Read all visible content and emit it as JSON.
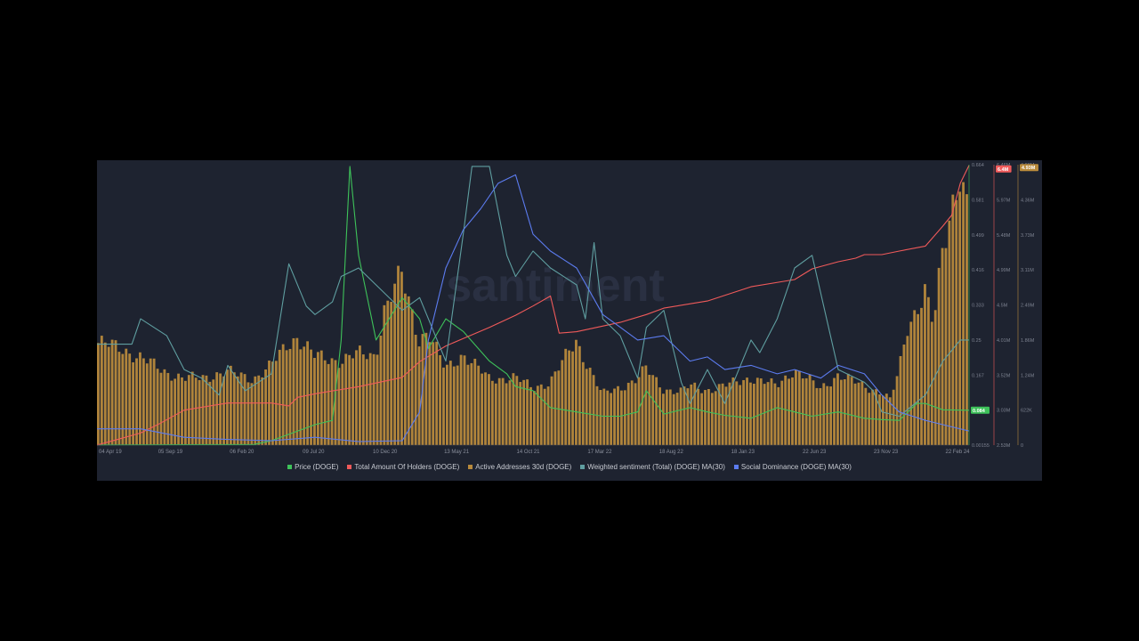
{
  "chart_data": {
    "type": "line",
    "title": "",
    "watermark": "santiment",
    "x_ticks": [
      "04 Apr 19",
      "05 Sep 19",
      "06 Feb 20",
      "09 Jul 20",
      "10 Dec 20",
      "13 May 21",
      "14 Oct 21",
      "17 Mar 22",
      "18 Aug 22",
      "18 Jan 23",
      "22 Jun 23",
      "23 Nov 23",
      "22 Feb 24"
    ],
    "grid": false,
    "legend_position": "bottom",
    "axes": {
      "price": {
        "ticks": [
          "0.00155",
          "0.084",
          "0.167",
          "0.25",
          "0.333",
          "0.416",
          "0.499",
          "0.581",
          "0.664"
        ],
        "badge": "0.084",
        "color": "#3ec25a"
      },
      "holders": {
        "ticks": [
          "2.53M",
          "3.03M",
          "3.52M",
          "4.01M",
          "4.5M",
          "4.99M",
          "5.48M",
          "5.97M",
          "6.46M"
        ],
        "badge": "6.4M",
        "color": "#f05a5a"
      },
      "active_addresses": {
        "ticks": [
          "0",
          "622K",
          "1.24M",
          "1.86M",
          "2.49M",
          "3.11M",
          "3.73M",
          "4.36M",
          "4.98M"
        ],
        "badge": "4.93M",
        "color": "#b88a3c"
      }
    },
    "series": [
      {
        "name": "Price (DOGE)",
        "color": "#3ec25a",
        "axis": "price",
        "x": [
          0,
          18,
          20,
          25,
          27,
          28,
          29,
          30,
          32,
          35,
          37,
          38,
          40,
          42,
          45,
          47,
          48,
          50,
          52,
          55,
          58,
          60,
          62,
          63,
          65,
          68,
          70,
          72,
          75,
          78,
          80,
          82,
          85,
          88,
          90,
          92,
          94,
          95,
          97,
          100
        ],
        "values": [
          0.002,
          0.003,
          0.012,
          0.05,
          0.06,
          0.25,
          0.66,
          0.45,
          0.25,
          0.35,
          0.3,
          0.23,
          0.3,
          0.27,
          0.2,
          0.17,
          0.14,
          0.13,
          0.09,
          0.08,
          0.07,
          0.07,
          0.08,
          0.13,
          0.075,
          0.09,
          0.08,
          0.072,
          0.065,
          0.09,
          0.08,
          0.07,
          0.08,
          0.065,
          0.062,
          0.06,
          0.1,
          0.1,
          0.085,
          0.084
        ]
      },
      {
        "name": "Total Amount Of Holders (DOGE)",
        "color": "#f05a5a",
        "axis": "holders",
        "x": [
          0,
          5,
          7,
          10,
          15,
          20,
          22,
          23,
          25,
          30,
          35,
          37,
          40,
          45,
          48,
          50,
          52,
          53,
          55,
          60,
          63,
          65,
          70,
          75,
          80,
          82,
          85,
          87,
          88,
          90,
          92,
          95,
          97,
          98,
          99,
          100
        ],
        "values": [
          2.53,
          2.7,
          2.82,
          3.02,
          3.12,
          3.12,
          3.08,
          3.2,
          3.25,
          3.35,
          3.48,
          3.7,
          3.92,
          4.18,
          4.35,
          4.48,
          4.62,
          4.1,
          4.12,
          4.25,
          4.36,
          4.45,
          4.55,
          4.75,
          4.85,
          5.0,
          5.1,
          5.15,
          5.2,
          5.2,
          5.25,
          5.32,
          5.6,
          5.75,
          6.2,
          6.45
        ]
      },
      {
        "name": "Active Addresses 30d (DOGE)",
        "color": "#b88a3c",
        "axis": "active_addresses",
        "type": "bar",
        "x": [
          0,
          3,
          5,
          8,
          10,
          12,
          15,
          18,
          20,
          22,
          23,
          25,
          28,
          30,
          32,
          33,
          35,
          37,
          38,
          40,
          42,
          45,
          48,
          50,
          52,
          55,
          58,
          60,
          62,
          63,
          65,
          67,
          68,
          70,
          72,
          75,
          78,
          80,
          83,
          85,
          88,
          90,
          91,
          92,
          93,
          95,
          96,
          97,
          98,
          99,
          100
        ],
        "values": [
          1.82,
          1.72,
          1.55,
          1.3,
          1.18,
          1.2,
          1.3,
          1.18,
          1.4,
          1.82,
          1.92,
          1.58,
          1.5,
          1.62,
          1.6,
          2.4,
          3.02,
          1.9,
          2.0,
          1.35,
          1.62,
          1.18,
          1.2,
          1.02,
          1.12,
          1.85,
          0.9,
          1.02,
          1.18,
          1.35,
          1.0,
          0.95,
          1.05,
          0.98,
          1.05,
          1.2,
          1.05,
          1.35,
          1.0,
          1.25,
          1.05,
          0.95,
          0.8,
          1.3,
          2.1,
          2.75,
          2.1,
          3.4,
          4.2,
          4.93,
          4.1
        ]
      },
      {
        "name": "Weighted sentiment (Total) (DOGE) MA(30)",
        "color": "#5f9ea0",
        "axis": "price",
        "x": [
          0,
          4,
          5,
          8,
          10,
          12,
          14,
          15,
          17,
          20,
          22,
          24,
          25,
          27,
          28,
          30,
          32,
          35,
          37,
          40,
          42,
          43,
          45,
          47,
          48,
          50,
          52,
          55,
          56,
          57,
          58,
          60,
          62,
          63,
          65,
          67,
          68,
          70,
          72,
          74,
          75,
          76,
          78,
          80,
          82,
          85,
          88,
          89,
          90,
          92,
          95,
          97,
          99,
          100
        ],
        "values": [
          0.24,
          0.24,
          0.3,
          0.26,
          0.18,
          0.16,
          0.12,
          0.19,
          0.13,
          0.17,
          0.43,
          0.33,
          0.31,
          0.34,
          0.4,
          0.42,
          0.38,
          0.32,
          0.35,
          0.2,
          0.5,
          0.66,
          0.66,
          0.45,
          0.4,
          0.46,
          0.42,
          0.38,
          0.3,
          0.48,
          0.3,
          0.26,
          0.16,
          0.28,
          0.32,
          0.15,
          0.1,
          0.18,
          0.1,
          0.2,
          0.25,
          0.22,
          0.3,
          0.42,
          0.45,
          0.18,
          0.15,
          0.13,
          0.08,
          0.07,
          0.12,
          0.2,
          0.25,
          0.25
        ]
      },
      {
        "name": "Social Dominance (DOGE) MA(30)",
        "color": "#5c7cf0",
        "axis": "price",
        "x": [
          0,
          5,
          10,
          15,
          20,
          25,
          30,
          35,
          37,
          38,
          40,
          42,
          44,
          46,
          48,
          50,
          52,
          55,
          58,
          60,
          62,
          65,
          68,
          70,
          72,
          75,
          78,
          80,
          83,
          85,
          88,
          90,
          92,
          95,
          97,
          100
        ],
        "values": [
          0.04,
          0.04,
          0.02,
          0.015,
          0.012,
          0.02,
          0.01,
          0.012,
          0.08,
          0.25,
          0.42,
          0.51,
          0.56,
          0.62,
          0.64,
          0.5,
          0.46,
          0.42,
          0.31,
          0.28,
          0.25,
          0.26,
          0.2,
          0.21,
          0.18,
          0.19,
          0.17,
          0.18,
          0.16,
          0.19,
          0.17,
          0.12,
          0.08,
          0.06,
          0.05,
          0.035
        ]
      }
    ]
  }
}
